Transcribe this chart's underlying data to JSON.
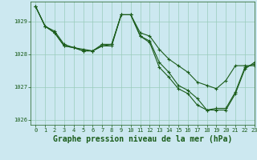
{
  "title": "Graphe pression niveau de la mer (hPa)",
  "bg_color": "#cce8f0",
  "grid_color": "#99ccbb",
  "line_color": "#1a5c1a",
  "series": [
    {
      "x": [
        0,
        1,
        2,
        3,
        4,
        5,
        6,
        7,
        8,
        9,
        10,
        11,
        12,
        13,
        14,
        15,
        16,
        17,
        18,
        19,
        20,
        21,
        22,
        23
      ],
      "y": [
        1029.45,
        1028.85,
        1028.7,
        1028.3,
        1028.2,
        1028.15,
        1028.1,
        1028.3,
        1028.3,
        1029.2,
        1029.2,
        1028.65,
        1028.55,
        1028.15,
        1027.85,
        1027.65,
        1027.45,
        1027.15,
        1027.05,
        1026.95,
        1027.2,
        1027.65,
        1027.65,
        1027.65
      ]
    },
    {
      "x": [
        0,
        1,
        2,
        3,
        4,
        5,
        6,
        7,
        8,
        9,
        10,
        11,
        12,
        13,
        14,
        15,
        16,
        17,
        18,
        19,
        20,
        21,
        22,
        23
      ],
      "y": [
        1029.45,
        1028.85,
        1028.65,
        1028.25,
        1028.2,
        1028.1,
        1028.1,
        1028.25,
        1028.25,
        1029.2,
        1029.2,
        1028.55,
        1028.4,
        1027.75,
        1027.45,
        1027.05,
        1026.9,
        1026.65,
        1026.3,
        1026.35,
        1026.35,
        1026.85,
        1027.6,
        1027.7
      ]
    },
    {
      "x": [
        0,
        1,
        2,
        3,
        4,
        5,
        6,
        7,
        8,
        9,
        10,
        11,
        12,
        13,
        14,
        15,
        16,
        17,
        18,
        19,
        20,
        21,
        22,
        23
      ],
      "y": [
        1029.45,
        1028.85,
        1028.65,
        1028.25,
        1028.2,
        1028.1,
        1028.1,
        1028.25,
        1028.3,
        1029.2,
        1029.2,
        1028.55,
        1028.35,
        1027.6,
        1027.3,
        1026.95,
        1026.8,
        1026.45,
        1026.3,
        1026.3,
        1026.3,
        1026.8,
        1027.55,
        1027.75
      ]
    }
  ],
  "xlim": [
    -0.5,
    23
  ],
  "ylim": [
    1025.85,
    1029.6
  ],
  "yticks": [
    1026,
    1027,
    1028,
    1029
  ],
  "xticks": [
    0,
    1,
    2,
    3,
    4,
    5,
    6,
    7,
    8,
    9,
    10,
    11,
    12,
    13,
    14,
    15,
    16,
    17,
    18,
    19,
    20,
    21,
    22,
    23
  ],
  "marker": "+",
  "markersize": 3,
  "linewidth": 0.8,
  "title_fontsize": 7,
  "tick_fontsize": 5,
  "title_color": "#1a5c1a",
  "tick_color": "#1a5c1a",
  "spine_color": "#1a5c1a"
}
